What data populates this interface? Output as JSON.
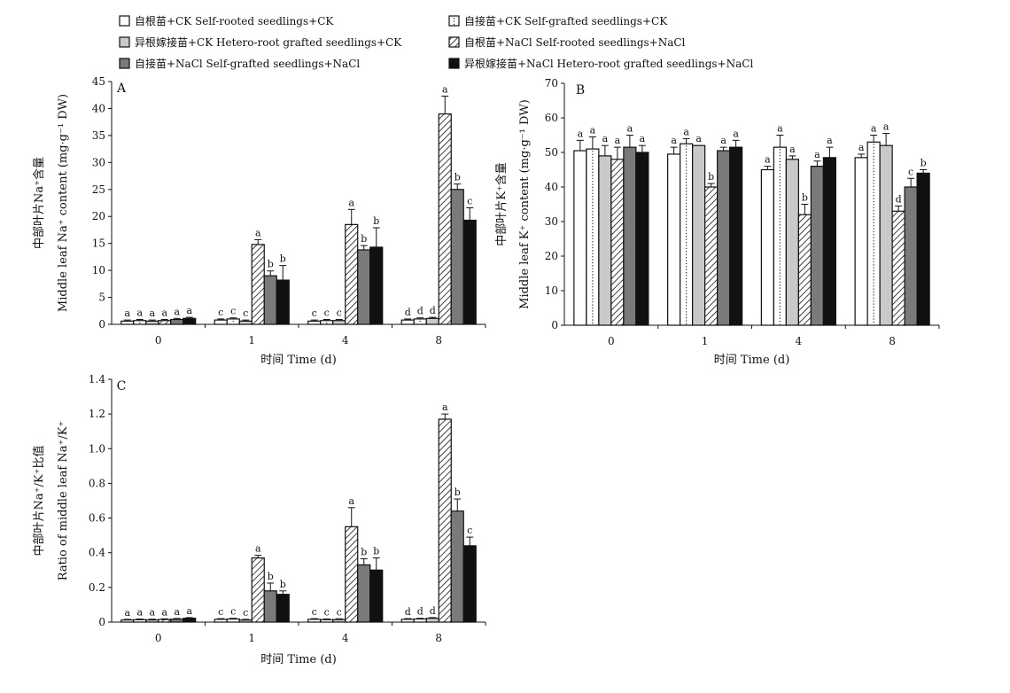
{
  "legend": {
    "items": [
      {
        "key": "sr_ck",
        "label": "自根苗+CK  Self-rooted seedlings+CK",
        "fill": "#ffffff",
        "pattern": "none"
      },
      {
        "key": "sg_ck",
        "label": "自接苗+CK  Self-grafted seedlings+CK",
        "fill": "#ffffff",
        "pattern": "dotline"
      },
      {
        "key": "hr_ck",
        "label": "异根嫁接苗+CK  Hetero-root grafted seedlings+CK",
        "fill": "#c9c9c9",
        "pattern": "none"
      },
      {
        "key": "sr_nacl",
        "label": "自根苗+NaCl  Self-rooted seedlings+NaCl",
        "fill": "#ffffff",
        "pattern": "hatch"
      },
      {
        "key": "sg_nacl",
        "label": "自接苗+NaCl  Self-grafted seedlings+NaCl",
        "fill": "#7a7a7a",
        "pattern": "none"
      },
      {
        "key": "hr_nacl",
        "label": "异根嫁接苗+NaCl  Hetero-root grafted seedlings+NaCl",
        "fill": "#111111",
        "pattern": "none"
      }
    ]
  },
  "chart_data": [
    {
      "panel": "A",
      "type": "bar",
      "categories": [
        "0",
        "1",
        "4",
        "8"
      ],
      "xlabel": "时间 Time (d)",
      "ylabel_cn": "中部叶片Na⁺含量",
      "ylabel_en": "Middle leaf Na⁺ content (mg·g⁻¹ DW)",
      "ylim": [
        0,
        45
      ],
      "yticks": [
        0,
        5,
        10,
        15,
        20,
        25,
        30,
        35,
        40,
        45
      ],
      "series": [
        {
          "values": [
            0.6,
            0.8,
            0.6,
            0.8
          ],
          "err": [
            0.2,
            0.2,
            0.2,
            0.2
          ],
          "letters": [
            "a",
            "c",
            "c",
            "d"
          ]
        },
        {
          "values": [
            0.7,
            1.0,
            0.7,
            1.0
          ],
          "err": [
            0.2,
            0.2,
            0.2,
            0.2
          ],
          "letters": [
            "a",
            "c",
            "c",
            "d"
          ]
        },
        {
          "values": [
            0.6,
            0.6,
            0.7,
            1.1
          ],
          "err": [
            0.2,
            0.2,
            0.2,
            0.2
          ],
          "letters": [
            "a",
            "c",
            "c",
            "d"
          ]
        },
        {
          "values": [
            0.7,
            14.8,
            18.5,
            39.0
          ],
          "err": [
            0.2,
            0.9,
            2.8,
            3.3
          ],
          "letters": [
            "a",
            "a",
            "a",
            "a"
          ]
        },
        {
          "values": [
            0.9,
            9.0,
            13.8,
            25.0
          ],
          "err": [
            0.2,
            0.9,
            0.8,
            1.0
          ],
          "letters": [
            "a",
            "b",
            "b",
            "b"
          ]
        },
        {
          "values": [
            1.1,
            8.2,
            14.3,
            19.3
          ],
          "err": [
            0.2,
            2.7,
            3.6,
            2.3
          ],
          "letters": [
            "a",
            "b",
            "b",
            "c"
          ]
        }
      ]
    },
    {
      "panel": "B",
      "type": "bar",
      "categories": [
        "0",
        "1",
        "4",
        "8"
      ],
      "xlabel": "时间 Time (d)",
      "ylabel_cn": "中部叶片K⁺含量",
      "ylabel_en": "Middle leaf K⁺ content (mg·g⁻¹ DW)",
      "ylim": [
        0,
        70
      ],
      "yticks": [
        0,
        10,
        20,
        30,
        40,
        50,
        60,
        70
      ],
      "series": [
        {
          "values": [
            50.5,
            49.5,
            45.0,
            48.5
          ],
          "err": [
            3.0,
            2.0,
            1.0,
            1.0
          ],
          "letters": [
            "a",
            "a",
            "a",
            "a"
          ]
        },
        {
          "values": [
            51.0,
            52.5,
            51.5,
            53.0
          ],
          "err": [
            3.5,
            1.5,
            3.5,
            2.0
          ],
          "letters": [
            "a",
            "a",
            "a",
            "a"
          ]
        },
        {
          "values": [
            49.0,
            52.0,
            48.0,
            52.0
          ],
          "err": [
            3.0,
            0,
            1.0,
            3.5
          ],
          "letters": [
            "a",
            "a",
            "a",
            "a"
          ]
        },
        {
          "values": [
            48.0,
            40.0,
            32.0,
            33.0
          ],
          "err": [
            3.5,
            1.0,
            3.0,
            1.5
          ],
          "letters": [
            "a",
            "b",
            "b",
            "d"
          ]
        },
        {
          "values": [
            51.5,
            50.5,
            46.0,
            40.0
          ],
          "err": [
            3.5,
            1.0,
            1.5,
            2.5
          ],
          "letters": [
            "a",
            "a",
            "a",
            "c"
          ]
        },
        {
          "values": [
            50.0,
            51.5,
            48.5,
            44.0
          ],
          "err": [
            2.0,
            2.0,
            3.0,
            1.0
          ],
          "letters": [
            "a",
            "a",
            "a",
            "b"
          ]
        }
      ]
    },
    {
      "panel": "C",
      "type": "bar",
      "categories": [
        "0",
        "1",
        "4",
        "8"
      ],
      "xlabel": "时间 Time (d)",
      "ylabel_cn": "中部叶片Na⁺/K⁺比值",
      "ylabel_en": "Ratio of middle leaf Na⁺/K⁺",
      "ylim": [
        0,
        1.4
      ],
      "yticks": [
        0,
        0.2,
        0.4,
        0.6,
        0.8,
        1.0,
        1.2,
        1.4
      ],
      "series": [
        {
          "values": [
            0.012,
            0.016,
            0.016,
            0.016
          ],
          "err": [
            0.004,
            0.004,
            0.004,
            0.004
          ],
          "letters": [
            "a",
            "c",
            "c",
            "d"
          ]
        },
        {
          "values": [
            0.014,
            0.018,
            0.014,
            0.018
          ],
          "err": [
            0.004,
            0.004,
            0.004,
            0.004
          ],
          "letters": [
            "a",
            "c",
            "c",
            "d"
          ]
        },
        {
          "values": [
            0.013,
            0.012,
            0.015,
            0.022
          ],
          "err": [
            0.004,
            0.004,
            0.004,
            0.004
          ],
          "letters": [
            "a",
            "c",
            "c",
            "d"
          ]
        },
        {
          "values": [
            0.015,
            0.37,
            0.55,
            1.17
          ],
          "err": [
            0.004,
            0.015,
            0.11,
            0.03
          ],
          "letters": [
            "a",
            "a",
            "a",
            "a"
          ]
        },
        {
          "values": [
            0.017,
            0.18,
            0.33,
            0.64
          ],
          "err": [
            0.004,
            0.045,
            0.035,
            0.07
          ],
          "letters": [
            "a",
            "b",
            "b",
            "b"
          ]
        },
        {
          "values": [
            0.022,
            0.16,
            0.3,
            0.44
          ],
          "err": [
            0.004,
            0.02,
            0.07,
            0.05
          ],
          "letters": [
            "a",
            "b",
            "b",
            "c"
          ]
        }
      ]
    }
  ]
}
